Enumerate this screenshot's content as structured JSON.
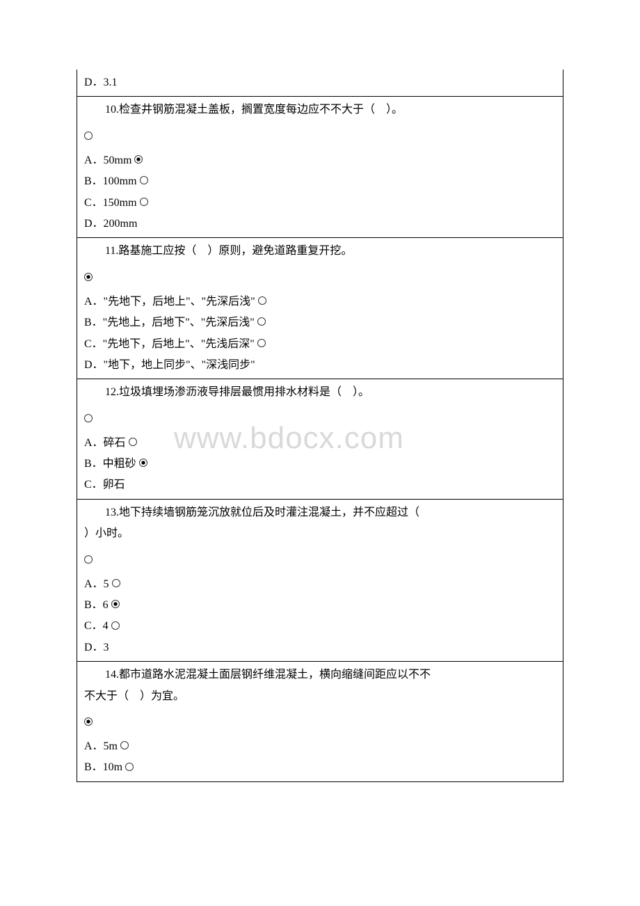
{
  "watermark": "www.bdocx.com",
  "q9_tail": {
    "option_d": "D．3.1"
  },
  "q10": {
    "question": "10.检查井钢筋混凝土盖板，搁置宽度每边应不不大于（　）。",
    "options": {
      "a": "A．50mm",
      "b": "B．100mm",
      "c": "C．150mm",
      "d": "D．200mm"
    },
    "selected": "a"
  },
  "q11": {
    "question": "11.路基施工应按（　）原则，避免道路重复开挖。",
    "options": {
      "a": "A．\"先地下，后地上\"、\"先深后浅\"",
      "b": "B．\"先地上，后地下\"、\"先深后浅\"",
      "c": "C．\"先地下，后地上\"、\"先浅后深\"",
      "d": "D．\"地下，地上同步\"、\"深浅同步\""
    },
    "selected": "a_leading"
  },
  "q12": {
    "question": "12.垃圾填埋场渗沥液导排层最惯用排水材料是（　）。",
    "options": {
      "a": "A．碎石",
      "b": "B．中粗砂",
      "c": "C．卵石"
    },
    "selected": "b"
  },
  "q13": {
    "question_line1": "13.地下持续墙钢筋笼沉放就位后及时灌注混凝土，并不应超过（　",
    "question_line2": "）小时。",
    "options": {
      "a": "A．5",
      "b": "B．6",
      "c": "C．4",
      "d": "D．3"
    },
    "selected": "b"
  },
  "q14": {
    "question_line1": "14.都市道路水泥混凝土面层钢纤维混凝土，横向缩缝间距应以不不",
    "question_line2": "不大于（　）为宜。",
    "options": {
      "a": "A．5m",
      "b": "B．10m"
    },
    "selected": "a_leading"
  }
}
